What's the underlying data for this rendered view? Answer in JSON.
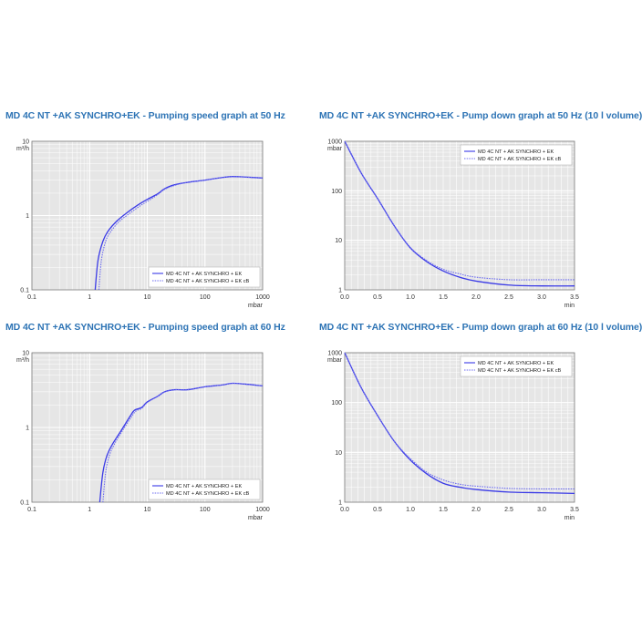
{
  "colors": {
    "title": "#2e74b5",
    "plot_bg": "#e6e6e6",
    "grid": "#ffffff",
    "solid": "#3a3ae6",
    "dotted": "#6c6cf0"
  },
  "chart_data": [
    {
      "id": "c1",
      "type": "line",
      "title": "MD 4C NT +AK SYNCHRO+EK - Pumping speed graph at 50 Hz",
      "xunit": "mbar",
      "yunit": "m³/h",
      "xscale": "log",
      "yscale": "log",
      "xlim": [
        0.1,
        1000
      ],
      "ylim": [
        0.1,
        10
      ],
      "xticks": [
        "0.1",
        "1",
        "10",
        "100",
        "1000"
      ],
      "yticks": [
        "0.1",
        "1",
        "10"
      ],
      "grid": true,
      "legend": "bottom-right",
      "series": [
        {
          "name": "MD 4C NT + AK SYNCHRO + EK",
          "style": "solid",
          "x": [
            1.25,
            1.4,
            1.7,
            2.1,
            3,
            4.5,
            7,
            10,
            15,
            20,
            30,
            50,
            100,
            200,
            300,
            500,
            1000
          ],
          "y": [
            0.1,
            0.25,
            0.45,
            0.62,
            0.85,
            1.1,
            1.4,
            1.65,
            1.95,
            2.3,
            2.6,
            2.8,
            3.0,
            3.25,
            3.35,
            3.3,
            3.2
          ]
        },
        {
          "name": "MD 4C NT + AK SYNCHRO + EK cB",
          "style": "dotted",
          "x": [
            1.45,
            1.6,
            1.9,
            2.3,
            3.2,
            4.8,
            7.5,
            10,
            15,
            20,
            30,
            50,
            100,
            200,
            300,
            500,
            1000
          ],
          "y": [
            0.1,
            0.25,
            0.45,
            0.6,
            0.82,
            1.05,
            1.35,
            1.55,
            1.9,
            2.25,
            2.55,
            2.8,
            3.0,
            3.25,
            3.35,
            3.3,
            3.2
          ]
        }
      ]
    },
    {
      "id": "c2",
      "type": "line",
      "title": "MD 4C NT +AK SYNCHRO+EK - Pump down graph at 50 Hz (10 l volume)",
      "xunit": "min",
      "yunit": "mbar",
      "xscale": "linear",
      "yscale": "log",
      "xlim": [
        0,
        3.5
      ],
      "ylim": [
        1,
        1000
      ],
      "xticks": [
        "0.0",
        "0.5",
        "1.0",
        "1.5",
        "2.0",
        "2.5",
        "3.0",
        "3.5"
      ],
      "yticks": [
        "1",
        "10",
        "100",
        "1000"
      ],
      "grid": true,
      "legend": "top-right",
      "series": [
        {
          "name": "MD 4C NT + AK SYNCHRO + EK",
          "style": "solid",
          "x": [
            0,
            0.25,
            0.5,
            0.75,
            1.0,
            1.25,
            1.5,
            1.75,
            2.0,
            2.5,
            3.0,
            3.5
          ],
          "y": [
            1000,
            230,
            70,
            20,
            7,
            3.7,
            2.4,
            1.8,
            1.5,
            1.25,
            1.2,
            1.2
          ]
        },
        {
          "name": "MD 4C NT + AK SYNCHRO + EK cB",
          "style": "dotted",
          "x": [
            0,
            0.25,
            0.5,
            0.75,
            1.0,
            1.25,
            1.5,
            1.75,
            2.0,
            2.5,
            3.0,
            3.5
          ],
          "y": [
            1000,
            230,
            70,
            20,
            7.2,
            3.9,
            2.6,
            2.1,
            1.8,
            1.6,
            1.6,
            1.6
          ]
        }
      ]
    },
    {
      "id": "c3",
      "type": "line",
      "title": "MD 4C NT +AK SYNCHRO+EK - Pumping speed graph at 60 Hz",
      "xunit": "mbar",
      "yunit": "m³/h",
      "xscale": "log",
      "yscale": "log",
      "xlim": [
        0.1,
        1000
      ],
      "ylim": [
        0.1,
        10
      ],
      "xticks": [
        "0.1",
        "1",
        "10",
        "100",
        "1000"
      ],
      "yticks": [
        "0.1",
        "1",
        "10"
      ],
      "grid": true,
      "legend": "bottom-right",
      "series": [
        {
          "name": "MD 4C NT + AK SYNCHRO + EK",
          "style": "solid",
          "x": [
            1.5,
            1.7,
            2.0,
            2.5,
            3.5,
            5,
            6,
            8,
            10,
            15,
            20,
            30,
            50,
            100,
            200,
            300,
            500,
            1000
          ],
          "y": [
            0.1,
            0.25,
            0.42,
            0.6,
            0.9,
            1.4,
            1.7,
            1.85,
            2.2,
            2.6,
            3.0,
            3.2,
            3.2,
            3.5,
            3.7,
            3.9,
            3.8,
            3.6
          ]
        },
        {
          "name": "MD 4C NT + AK SYNCHRO + EK cB",
          "style": "dotted",
          "x": [
            1.7,
            1.9,
            2.2,
            2.7,
            3.7,
            5.2,
            6.3,
            8,
            10,
            15,
            20,
            30,
            50,
            100,
            200,
            300,
            500,
            1000
          ],
          "y": [
            0.1,
            0.25,
            0.42,
            0.6,
            0.9,
            1.35,
            1.65,
            1.8,
            2.15,
            2.6,
            3.0,
            3.2,
            3.2,
            3.5,
            3.7,
            3.9,
            3.8,
            3.6
          ]
        }
      ]
    },
    {
      "id": "c4",
      "type": "line",
      "title": "MD 4C NT +AK SYNCHRO+EK - Pump down graph at 60 Hz (10 l volume)",
      "xunit": "min",
      "yunit": "mbar",
      "xscale": "linear",
      "yscale": "log",
      "xlim": [
        0,
        3.5
      ],
      "ylim": [
        1,
        1000
      ],
      "xticks": [
        "0.0",
        "0.5",
        "1.0",
        "1.5",
        "2.0",
        "2.5",
        "3.0",
        "3.5"
      ],
      "yticks": [
        "1",
        "10",
        "100",
        "1000"
      ],
      "grid": true,
      "legend": "top-right",
      "series": [
        {
          "name": "MD 4C NT + AK SYNCHRO + EK",
          "style": "solid",
          "x": [
            0,
            0.25,
            0.5,
            0.75,
            1.0,
            1.25,
            1.5,
            1.75,
            2.0,
            2.5,
            3.0,
            3.5
          ],
          "y": [
            1000,
            200,
            55,
            17,
            7,
            3.7,
            2.4,
            2.0,
            1.8,
            1.6,
            1.55,
            1.5
          ]
        },
        {
          "name": "MD 4C NT + AK SYNCHRO + EK cB",
          "style": "dotted",
          "x": [
            0,
            0.25,
            0.5,
            0.75,
            1.0,
            1.25,
            1.5,
            1.75,
            2.0,
            2.5,
            3.0,
            3.5
          ],
          "y": [
            1000,
            200,
            55,
            17,
            7.5,
            4.0,
            2.8,
            2.3,
            2.1,
            1.9,
            1.85,
            1.85
          ]
        }
      ]
    }
  ]
}
